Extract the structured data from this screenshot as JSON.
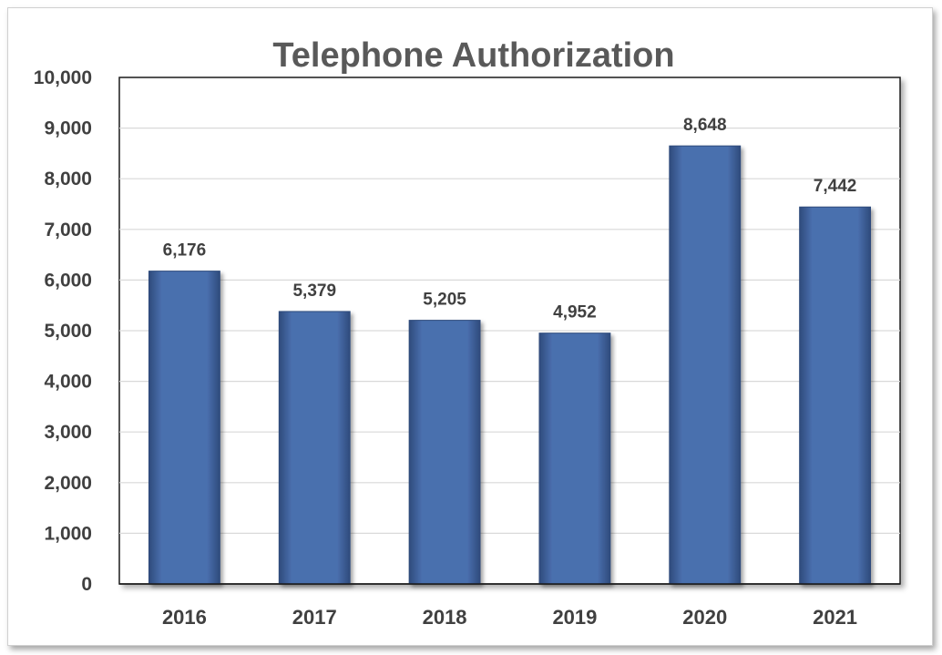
{
  "chart_data": {
    "type": "bar",
    "title": "Telephone Authorization",
    "xlabel": "",
    "ylabel": "",
    "categories": [
      "2016",
      "2017",
      "2018",
      "2019",
      "2020",
      "2021"
    ],
    "values": [
      6176,
      5379,
      5205,
      4952,
      8648,
      7442
    ],
    "value_labels": [
      "6,176",
      "5,379",
      "5,205",
      "4,952",
      "8,648",
      "7,442"
    ],
    "ylim": [
      0,
      10000
    ],
    "yticks": [
      "0",
      "1,000",
      "2,000",
      "3,000",
      "4,000",
      "5,000",
      "6,000",
      "7,000",
      "8,000",
      "9,000",
      "10,000"
    ],
    "grid": true,
    "legend": "none",
    "colors": {
      "bar": "#4a6fae",
      "bar_edge": "#2f4b7c",
      "grid": "#d9d9d9",
      "title": "#595959",
      "text": "#404040"
    }
  }
}
